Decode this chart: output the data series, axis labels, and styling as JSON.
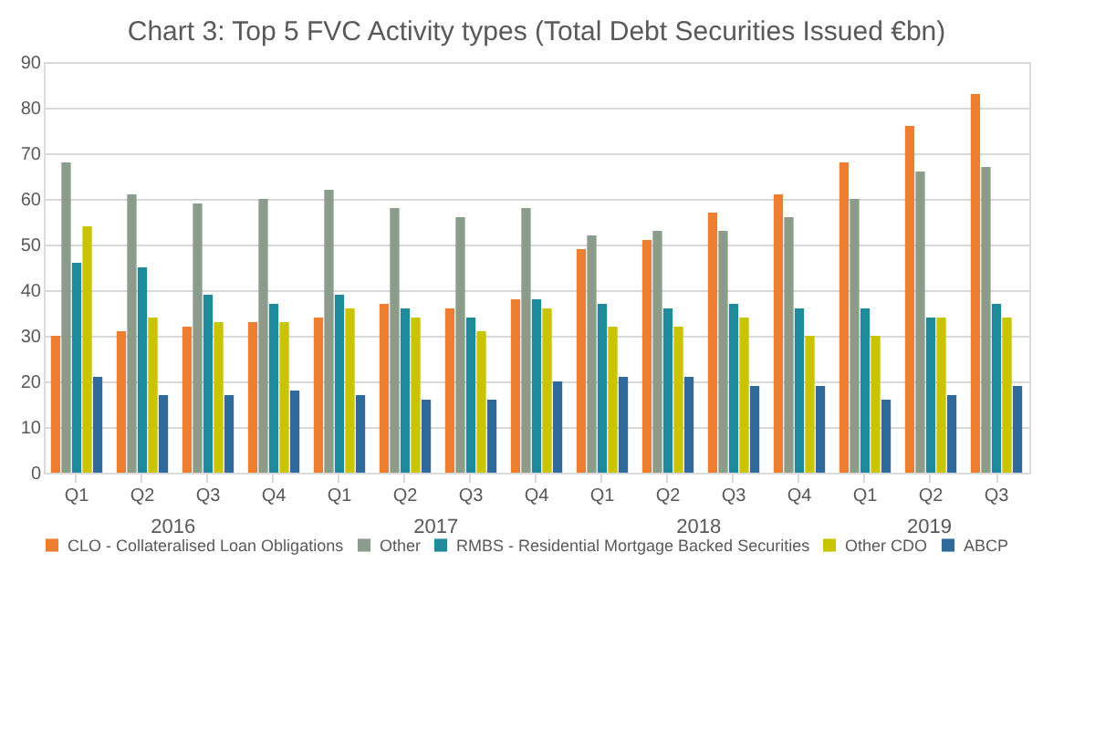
{
  "chart_data": {
    "type": "bar",
    "title": "Chart 3: Top 5 FVC Activity types (Total Debt Securities Issued €bn)",
    "categories": [
      "Q1",
      "Q2",
      "Q3",
      "Q4",
      "Q1",
      "Q2",
      "Q3",
      "Q4",
      "Q1",
      "Q2",
      "Q3",
      "Q4",
      "Q1",
      "Q2",
      "Q3"
    ],
    "annotations": [
      "2016",
      "2017",
      "2018",
      "2019"
    ],
    "series": [
      {
        "name": "CLO - Collateralised Loan Obligations",
        "color": "#ed7d31",
        "values": [
          30,
          31,
          32,
          33,
          34,
          37,
          36,
          38,
          49,
          51,
          57,
          61,
          68,
          76,
          83
        ]
      },
      {
        "name": "Other",
        "color": "#8c9c8c",
        "values": [
          68,
          61,
          59,
          60,
          62,
          58,
          56,
          58,
          52,
          53,
          53,
          56,
          60,
          66,
          67
        ]
      },
      {
        "name": "RMBS - Residential Mortgage Backed Securities",
        "color": "#1f8a9a",
        "values": [
          46,
          45,
          39,
          37,
          39,
          36,
          34,
          38,
          37,
          36,
          37,
          36,
          36,
          34,
          37
        ]
      },
      {
        "name": "Other CDO",
        "color": "#c9c400",
        "values": [
          54,
          34,
          33,
          33,
          36,
          34,
          31,
          36,
          32,
          32,
          34,
          30,
          30,
          34,
          34
        ]
      },
      {
        "name": "ABCP",
        "color": "#2f6a9a",
        "values": [
          21,
          17,
          17,
          18,
          17,
          16,
          16,
          20,
          21,
          21,
          19,
          19,
          16,
          17,
          19
        ]
      }
    ],
    "ylim": [
      0,
      90
    ],
    "yticks": [
      0,
      10,
      20,
      30,
      40,
      50,
      60,
      70,
      80,
      90
    ],
    "grid": "y",
    "legend": "bottom"
  }
}
